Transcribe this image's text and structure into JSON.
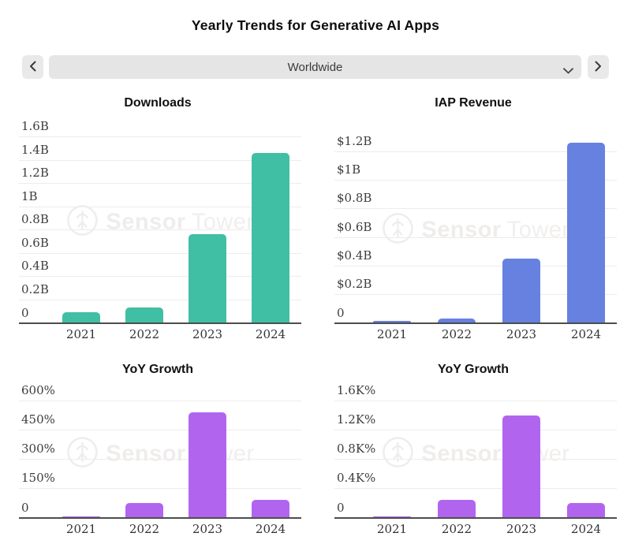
{
  "page": {
    "title": "Yearly Trends for Generative AI Apps"
  },
  "selector": {
    "value": "Worldwide",
    "prev_icon": "chevron-left",
    "next_icon": "chevron-right",
    "dropdown_icon": "chevron-down"
  },
  "watermark": {
    "logo_icon": "sensor-tower-logo",
    "brand_bold": "Sensor",
    "brand_light": "Tower"
  },
  "chart_data": [
    {
      "type": "bar",
      "id": "downloads",
      "title": "Downloads",
      "bar_color": "#41bfa5",
      "categories": [
        "2021",
        "2022",
        "2023",
        "2024"
      ],
      "values": [
        0.09,
        0.13,
        0.76,
        1.46
      ],
      "value_unit": "billions of downloads",
      "axis_ticks": [
        "1.6B",
        "1.4B",
        "1.2B",
        "1B",
        "0.8B",
        "0.6B",
        "0.4B",
        "0.2B",
        "0"
      ],
      "axis_top_value": 1.6,
      "ylim": [
        0,
        1.6
      ],
      "grid": true,
      "legend": false
    },
    {
      "type": "bar",
      "id": "iap-revenue",
      "title": "IAP Revenue",
      "bar_color": "#6781e0",
      "categories": [
        "2021",
        "2022",
        "2023",
        "2024"
      ],
      "values": [
        0.01,
        0.03,
        0.45,
        1.26
      ],
      "value_unit": "billions of USD",
      "axis_ticks": [
        "$1.2B",
        "$1B",
        "$0.8B",
        "$0.6B",
        "$0.4B",
        "$0.2B",
        "0"
      ],
      "axis_top_value": 1.2,
      "ylim": [
        0,
        1.2
      ],
      "grid": true,
      "legend": false
    },
    {
      "type": "bar",
      "id": "yoy-growth-downloads",
      "title": "YoY Growth",
      "bar_color": "#b165ef",
      "categories": [
        "2021",
        "2022",
        "2023",
        "2024"
      ],
      "values": [
        2,
        75,
        540,
        90
      ],
      "value_unit": "percent",
      "axis_ticks": [
        "600%",
        "450%",
        "300%",
        "150%",
        "0"
      ],
      "axis_top_value": 600,
      "ylim": [
        0,
        600
      ],
      "grid": true,
      "legend": false
    },
    {
      "type": "bar",
      "id": "yoy-growth-revenue",
      "title": "YoY Growth",
      "bar_color": "#b165ef",
      "categories": [
        "2021",
        "2022",
        "2023",
        "2024"
      ],
      "values": [
        10,
        240,
        1400,
        190
      ],
      "value_unit": "percent",
      "axis_ticks": [
        "1.6K%",
        "1.2K%",
        "0.8K%",
        "0.4K%",
        "0"
      ],
      "axis_top_value": 1600,
      "ylim": [
        0,
        1600
      ],
      "grid": true,
      "legend": false
    }
  ]
}
